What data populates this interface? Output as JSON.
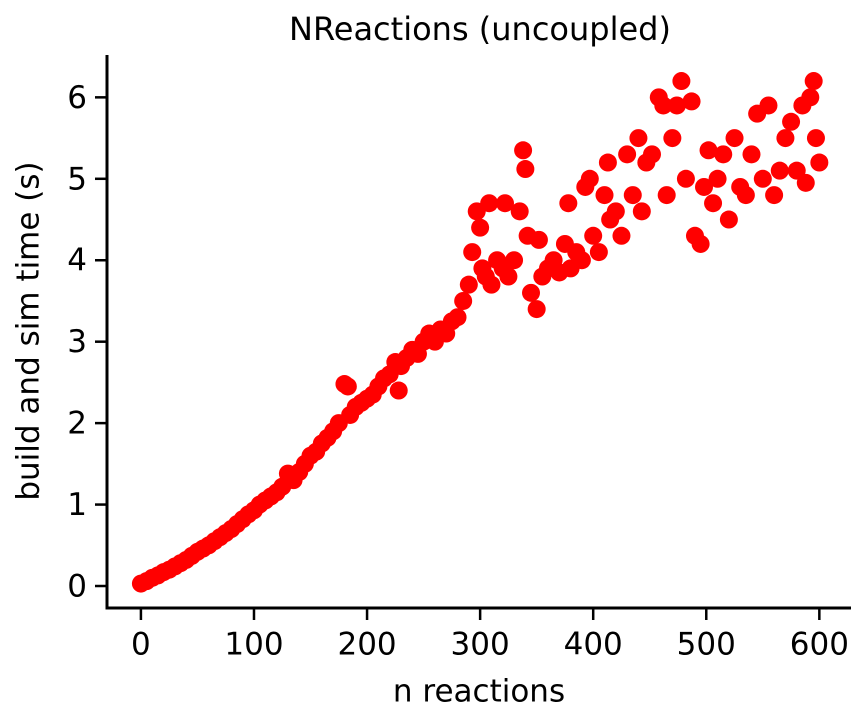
{
  "chart_data": {
    "type": "scatter",
    "title": "NReactions (uncoupled)",
    "x_label": "n reactions",
    "y_label": "build and sim time (s)",
    "color": "#ff0000",
    "xlim": [
      -30,
      628
    ],
    "ylim": [
      -0.27,
      6.52
    ],
    "xticks": [
      0,
      100,
      200,
      300,
      400,
      500,
      600
    ],
    "yticks": [
      0,
      1,
      2,
      3,
      4,
      5,
      6
    ],
    "x": [
      0,
      5,
      10,
      15,
      20,
      25,
      30,
      35,
      40,
      45,
      50,
      55,
      60,
      65,
      70,
      75,
      80,
      85,
      90,
      95,
      100,
      105,
      110,
      115,
      120,
      125,
      130,
      135,
      140,
      145,
      150,
      155,
      160,
      165,
      170,
      175,
      180,
      183,
      185,
      190,
      195,
      200,
      205,
      210,
      215,
      220,
      225,
      228,
      230,
      235,
      240,
      245,
      250,
      255,
      260,
      265,
      270,
      275,
      280,
      285,
      290,
      293,
      297,
      300,
      302,
      305,
      308,
      310,
      315,
      320,
      322,
      325,
      330,
      335,
      338,
      340,
      342,
      345,
      350,
      352,
      355,
      360,
      365,
      370,
      375,
      378,
      380,
      385,
      390,
      393,
      397,
      400,
      405,
      410,
      413,
      415,
      420,
      425,
      430,
      435,
      440,
      443,
      447,
      452,
      458,
      462,
      465,
      470,
      474,
      478,
      482,
      487,
      490,
      495,
      498,
      502,
      506,
      510,
      515,
      520,
      525,
      530,
      535,
      540,
      545,
      550,
      555,
      560,
      565,
      570,
      575,
      580,
      585,
      588,
      592,
      595,
      597,
      600
    ],
    "values": [
      0.03,
      0.06,
      0.1,
      0.13,
      0.17,
      0.2,
      0.24,
      0.28,
      0.32,
      0.37,
      0.42,
      0.46,
      0.5,
      0.55,
      0.6,
      0.65,
      0.7,
      0.76,
      0.82,
      0.88,
      0.93,
      1.0,
      1.05,
      1.1,
      1.15,
      1.22,
      1.38,
      1.3,
      1.4,
      1.5,
      1.6,
      1.65,
      1.75,
      1.82,
      1.9,
      2.0,
      2.48,
      2.45,
      2.1,
      2.2,
      2.25,
      2.3,
      2.35,
      2.45,
      2.55,
      2.6,
      2.75,
      2.4,
      2.7,
      2.8,
      2.9,
      2.85,
      3.0,
      3.1,
      3.0,
      3.15,
      3.1,
      3.25,
      3.3,
      3.5,
      3.7,
      4.1,
      4.6,
      4.4,
      3.9,
      3.8,
      4.7,
      3.7,
      4.0,
      3.9,
      4.7,
      3.8,
      4.0,
      4.6,
      5.35,
      5.12,
      4.3,
      3.6,
      3.4,
      4.25,
      3.8,
      3.9,
      4.0,
      3.85,
      4.2,
      4.7,
      3.9,
      4.1,
      4.0,
      4.9,
      5.0,
      4.3,
      4.1,
      4.8,
      5.2,
      4.5,
      4.6,
      4.3,
      5.3,
      4.8,
      5.5,
      4.6,
      5.2,
      5.3,
      6.0,
      5.9,
      4.8,
      5.5,
      5.9,
      6.2,
      5.0,
      5.95,
      4.3,
      4.2,
      4.9,
      5.35,
      4.7,
      5.0,
      5.3,
      4.5,
      5.5,
      4.9,
      4.8,
      5.3,
      5.8,
      5.0,
      5.9,
      4.8,
      5.1,
      5.5,
      5.7,
      5.1,
      5.9,
      4.95,
      6.0,
      6.2,
      5.5,
      5.2
    ]
  }
}
